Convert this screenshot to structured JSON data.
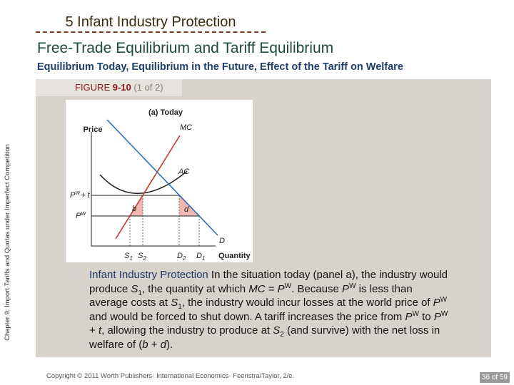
{
  "header": {
    "section": "5 Infant Industry Protection",
    "title": "Free-Trade Equilibrium and Tariff Equilibrium",
    "subtitle": "Equilibrium Today, Equilibrium in the Future, Effect of the Tariff on Welfare"
  },
  "sidebar": "Chapter 9: Import Tariffs and Quotas under Imperfect Competition",
  "figure": {
    "label": "FIGURE",
    "number": "9-10",
    "part": "(1 of 2)",
    "panel": {
      "title": "(a) Today",
      "y_axis": "Price",
      "x_axis": "Quantity",
      "mc": "MC",
      "ac": "AC",
      "demand": "D",
      "pwt": [
        "P",
        "W",
        "+ t"
      ],
      "pw": [
        "P",
        "W"
      ],
      "area_b": "b",
      "area_d": "d",
      "s1": [
        "S",
        "1"
      ],
      "s2": [
        "S",
        "2"
      ],
      "d2": [
        "D",
        "2"
      ],
      "d1": [
        "D",
        "1"
      ]
    },
    "caption": [
      "Infant Industry Protection",
      " In the situation today (panel a), the industry would produce ",
      "S",
      "1",
      ", the quantity at which ",
      "MC",
      " = ",
      "P",
      "W",
      ". Because ",
      "P",
      "W",
      " is less than average costs at ",
      "S",
      "1",
      ", the industry would incur losses at the world price of ",
      "P",
      "W",
      " and would be forced to shut down. A tariff increases the price from ",
      "P",
      "W",
      " to ",
      "P",
      "W",
      " + ",
      "t",
      ", allowing the industry to produce at ",
      "S",
      "2",
      " (and survive) with the net loss in welfare of (",
      "b",
      " + ",
      "d",
      ")."
    ]
  },
  "footer": {
    "copyright": "Copyright © 2011 Worth Publishers· International Economics· Feenstra/Taylor, 2/e.",
    "page": "36 of 59"
  }
}
